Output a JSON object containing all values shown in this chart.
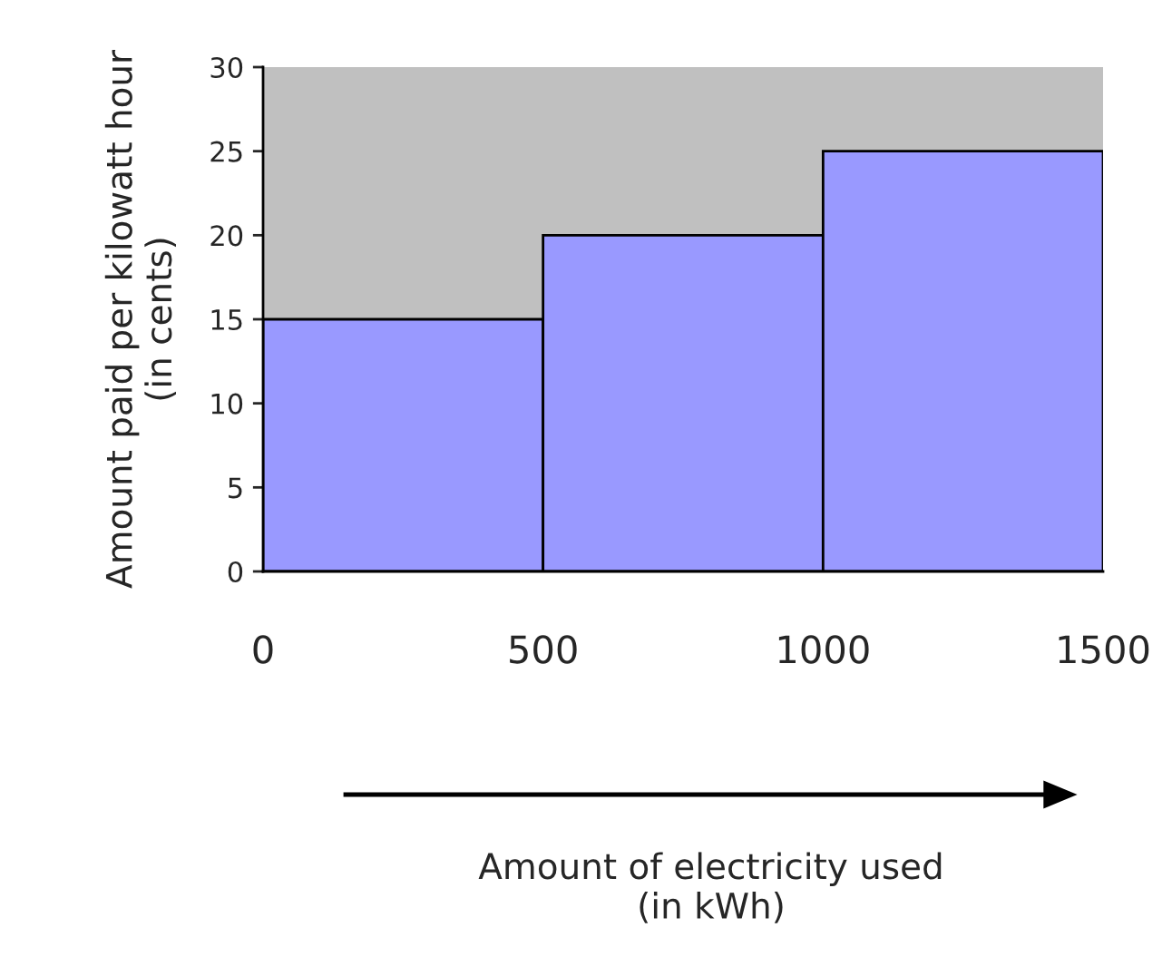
{
  "chart_data": {
    "type": "histogram",
    "bins": [
      0,
      500,
      1000,
      1500
    ],
    "values": [
      15,
      20,
      25
    ],
    "color": "#9999ff",
    "xlim": [
      0,
      1500
    ],
    "xticks": [
      0,
      500,
      1000,
      1500
    ],
    "ylim": [
      0,
      30
    ],
    "yticks": [
      0,
      5,
      10,
      15,
      20,
      25,
      30
    ],
    "annotations": [
      "Amount of electricity used\n(in kWh)"
    ],
    "ylabel": "Amount paid per kilowatt hour\n(in cents)",
    "grid": false,
    "legend": false
  }
}
